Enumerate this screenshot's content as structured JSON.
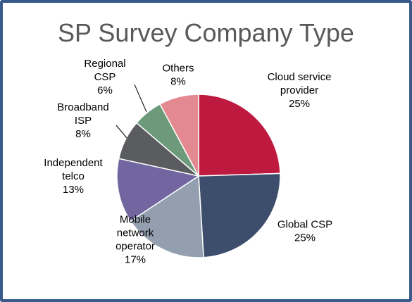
{
  "chart_data": {
    "type": "pie",
    "title": "SP Survey Company Type",
    "slices": [
      {
        "label_lines": [
          "Cloud service",
          "provider"
        ],
        "pct_label": "25%",
        "value": 25,
        "color": "#be1a40"
      },
      {
        "label_lines": [
          "Global CSP"
        ],
        "pct_label": "25%",
        "value": 25,
        "color": "#3d4e6c"
      },
      {
        "label_lines": [
          "Mobile",
          "network",
          "operator"
        ],
        "pct_label": "17%",
        "value": 17,
        "color": "#939faf"
      },
      {
        "label_lines": [
          "Independent",
          "telco"
        ],
        "pct_label": "13%",
        "value": 13,
        "color": "#7266a0"
      },
      {
        "label_lines": [
          "Broadband",
          "ISP"
        ],
        "pct_label": "8%",
        "value": 8,
        "color": "#5a5c5f"
      },
      {
        "label_lines": [
          "Regional",
          "CSP"
        ],
        "pct_label": "6%",
        "value": 6,
        "color": "#6e9a7c"
      },
      {
        "label_lines": [
          "Others"
        ],
        "pct_label": "8%",
        "value": 8,
        "color": "#e28a90"
      }
    ]
  }
}
